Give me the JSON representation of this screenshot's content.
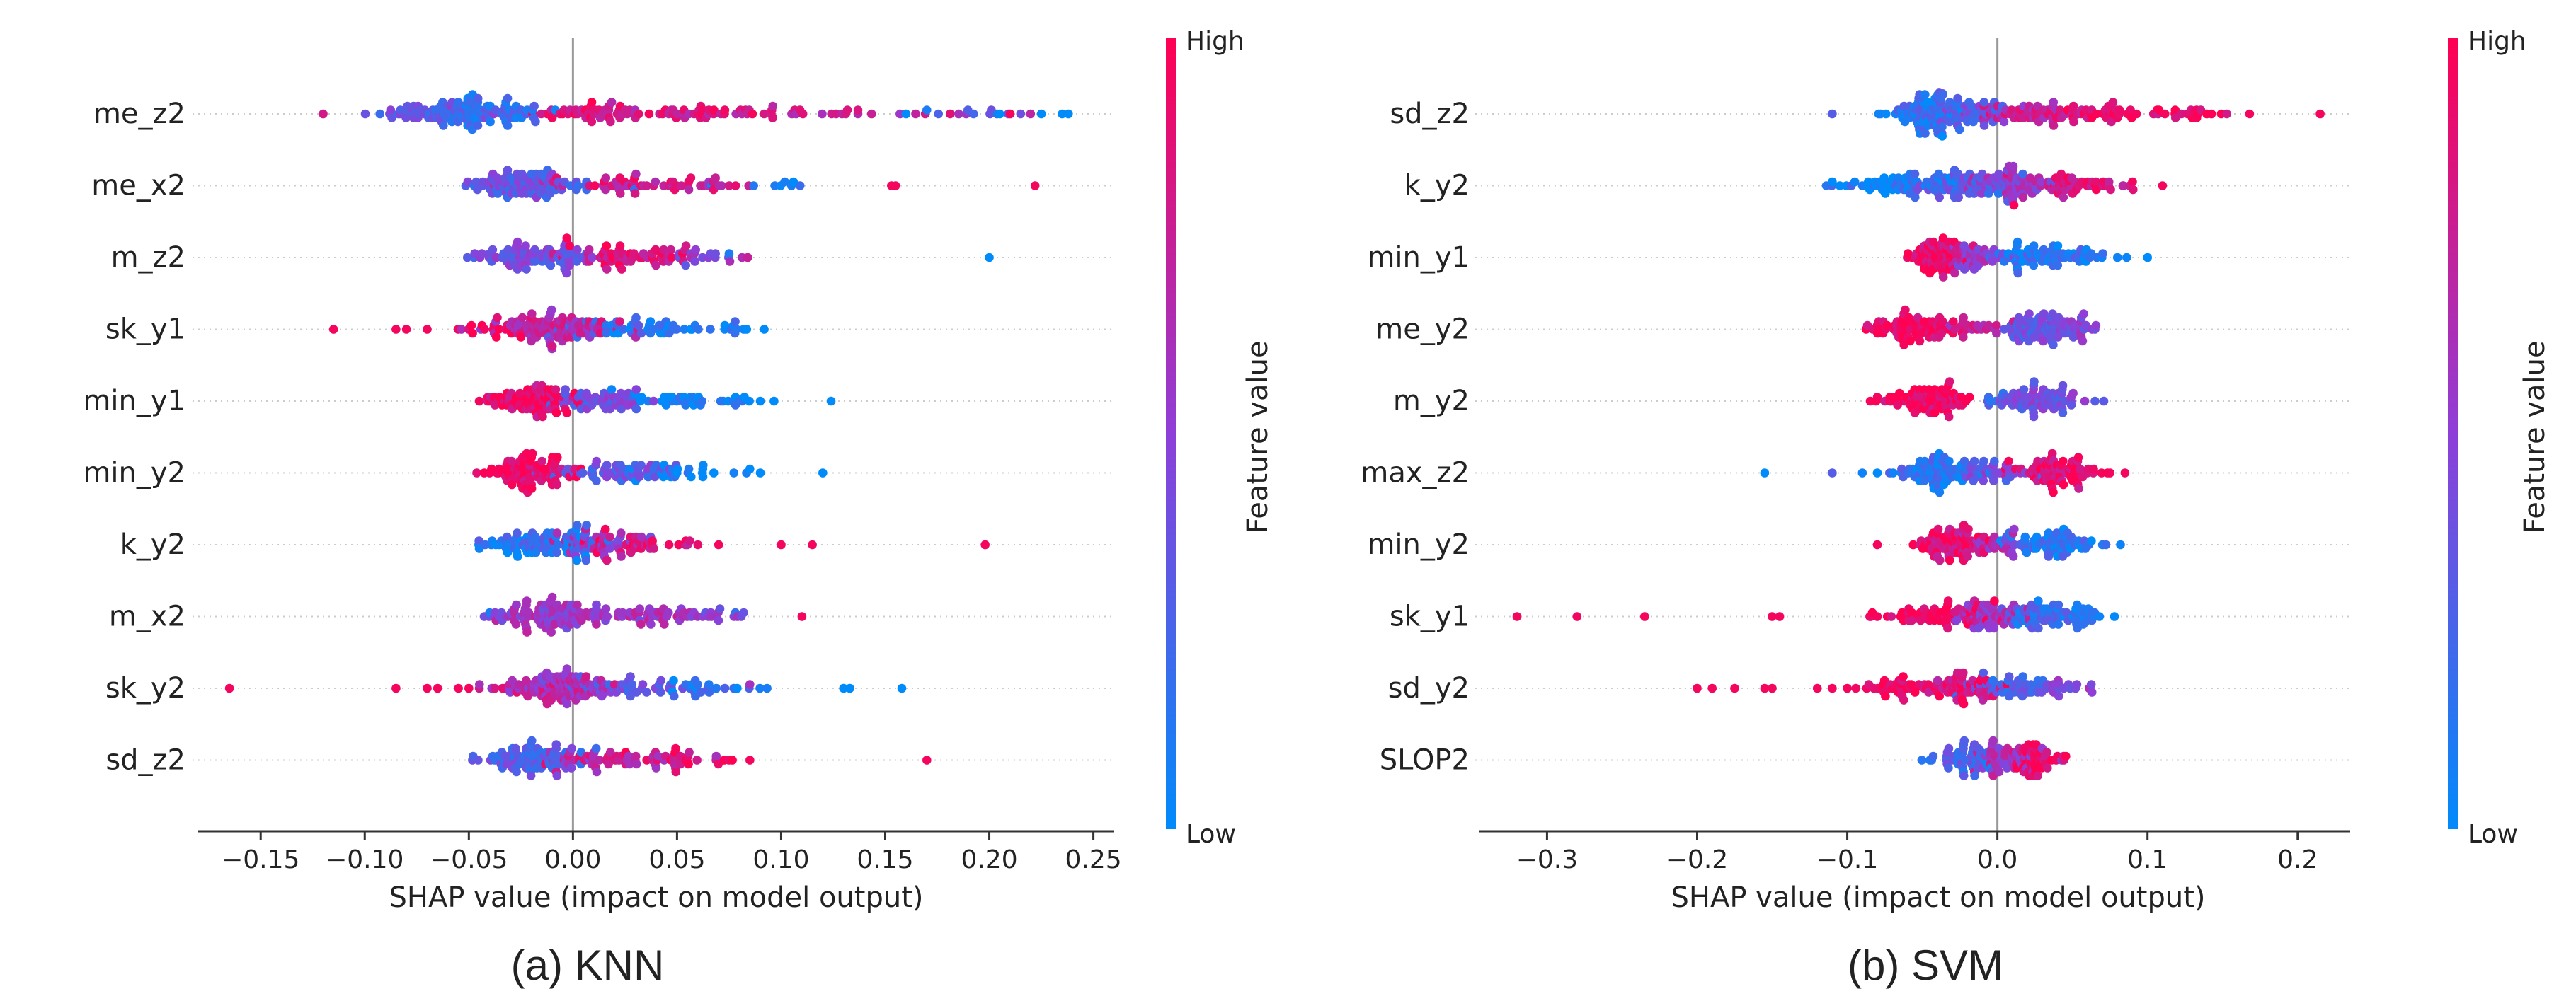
{
  "colors": {
    "low": "#008bfb",
    "mid": "#8e3fd8",
    "high": "#ff0052",
    "grid": "#cccccc",
    "zero_line": "#999999",
    "axis": "#333333"
  },
  "chart_data": [
    {
      "type": "scatter",
      "subtype": "shap-beeswarm",
      "caption": "(a) KNN",
      "xlabel": "SHAP value (impact on model output)",
      "xlim": [
        -0.18,
        0.26
      ],
      "xticks": [
        -0.15,
        -0.1,
        -0.05,
        0.0,
        0.05,
        0.1,
        0.15,
        0.2,
        0.25
      ],
      "xtick_labels": [
        "−0.15",
        "−0.10",
        "−0.05",
        "0.00",
        "0.05",
        "0.10",
        "0.15",
        "0.20",
        "0.25"
      ],
      "colorbar": {
        "label": "Feature value",
        "high": "High",
        "low": "Low"
      },
      "features": [
        {
          "name": "me_z2",
          "clusters": [
            [
              -0.045,
              0.018,
              95,
              0.2
            ],
            [
              -0.075,
              0.014,
              30,
              0.35
            ],
            [
              0.005,
              0.01,
              30,
              0.85
            ],
            [
              0.05,
              0.03,
              60,
              0.8
            ],
            [
              0.13,
              0.03,
              22,
              0.7
            ],
            [
              0.21,
              0.02,
              8,
              0.35
            ]
          ],
          "outliers": [
            [
              -0.12,
              0.8
            ],
            [
              0.235,
              0.0
            ],
            [
              0.238,
              0.0
            ],
            [
              0.225,
              0.0
            ],
            [
              0.205,
              0.0
            ],
            [
              0.21,
              0.95
            ],
            [
              0.17,
              0.1
            ],
            [
              0.16,
              0.0
            ]
          ]
        },
        {
          "name": "me_x2",
          "clusters": [
            [
              -0.02,
              0.013,
              95,
              0.35
            ],
            [
              0.03,
              0.02,
              45,
              0.8
            ],
            [
              0.07,
              0.01,
              12,
              0.75
            ],
            [
              0.1,
              0.01,
              8,
              0.05
            ]
          ],
          "outliers": [
            [
              0.155,
              0.95
            ],
            [
              0.153,
              0.95
            ],
            [
              0.222,
              0.95
            ]
          ]
        },
        {
          "name": "m_z2",
          "clusters": [
            [
              -0.02,
              0.015,
              85,
              0.4
            ],
            [
              0.025,
              0.018,
              60,
              0.85
            ],
            [
              0.06,
              0.01,
              18,
              0.5
            ]
          ],
          "outliers": [
            [
              0.2,
              0.0
            ],
            [
              0.075,
              0.1
            ]
          ]
        },
        {
          "name": "sk_y1",
          "clusters": [
            [
              -0.008,
              0.016,
              95,
              0.7
            ],
            [
              0.03,
              0.018,
              50,
              0.15
            ],
            [
              0.065,
              0.01,
              12,
              0.05
            ],
            [
              -0.04,
              0.012,
              18,
              0.9
            ]
          ],
          "outliers": [
            [
              -0.115,
              0.95
            ],
            [
              -0.085,
              0.95
            ],
            [
              -0.08,
              0.95
            ],
            [
              -0.07,
              0.95
            ],
            [
              0.082,
              0.05
            ]
          ]
        },
        {
          "name": "min_y1",
          "clusters": [
            [
              -0.02,
              0.01,
              85,
              0.9
            ],
            [
              0.015,
              0.015,
              50,
              0.4
            ],
            [
              0.05,
              0.015,
              28,
              0.05
            ],
            [
              0.08,
              0.01,
              10,
              0.0
            ]
          ],
          "outliers": [
            [
              -0.045,
              0.95
            ],
            [
              0.09,
              0.0
            ],
            [
              0.124,
              0.0
            ]
          ]
        },
        {
          "name": "min_y2",
          "clusters": [
            [
              -0.02,
              0.01,
              85,
              0.92
            ],
            [
              0.015,
              0.018,
              55,
              0.35
            ],
            [
              0.05,
              0.015,
              22,
              0.05
            ]
          ],
          "outliers": [
            [
              -0.04,
              0.95
            ],
            [
              0.085,
              0.0
            ],
            [
              0.09,
              0.0
            ],
            [
              0.12,
              0.0
            ]
          ]
        },
        {
          "name": "k_y2",
          "clusters": [
            [
              -0.015,
              0.015,
              85,
              0.15
            ],
            [
              0.01,
              0.012,
              30,
              0.55
            ],
            [
              0.03,
              0.015,
              40,
              0.85
            ]
          ],
          "outliers": [
            [
              -0.045,
              0.05
            ],
            [
              0.07,
              0.95
            ],
            [
              0.1,
              0.95
            ],
            [
              0.115,
              0.95
            ],
            [
              0.198,
              0.95
            ],
            [
              0.06,
              0.9
            ]
          ]
        },
        {
          "name": "m_x2",
          "clusters": [
            [
              -0.015,
              0.012,
              85,
              0.55
            ],
            [
              0.025,
              0.02,
              55,
              0.6
            ],
            [
              0.065,
              0.01,
              15,
              0.5
            ]
          ],
          "outliers": [
            [
              0.11,
              0.95
            ],
            [
              0.078,
              0.2
            ],
            [
              -0.04,
              0.1
            ]
          ]
        },
        {
          "name": "sk_y2",
          "clusters": [
            [
              -0.005,
              0.012,
              90,
              0.65
            ],
            [
              0.03,
              0.015,
              40,
              0.35
            ],
            [
              0.065,
              0.015,
              22,
              0.1
            ],
            [
              -0.03,
              0.012,
              15,
              0.75
            ]
          ],
          "outliers": [
            [
              -0.165,
              0.95
            ],
            [
              -0.085,
              0.95
            ],
            [
              -0.07,
              0.95
            ],
            [
              -0.065,
              0.95
            ],
            [
              -0.055,
              0.95
            ],
            [
              -0.05,
              0.95
            ],
            [
              0.085,
              0.6
            ],
            [
              0.13,
              0.0
            ],
            [
              0.133,
              0.0
            ],
            [
              0.158,
              0.0
            ]
          ]
        },
        {
          "name": "sd_z2",
          "clusters": [
            [
              -0.02,
              0.012,
              85,
              0.3
            ],
            [
              0.02,
              0.018,
              55,
              0.75
            ],
            [
              0.055,
              0.012,
              20,
              0.9
            ]
          ],
          "outliers": [
            [
              0.085,
              0.95
            ],
            [
              0.17,
              0.95
            ]
          ]
        }
      ]
    },
    {
      "type": "scatter",
      "subtype": "shap-beeswarm",
      "caption": "(b) SVM",
      "xlabel": "SHAP value (impact on model output)",
      "xlim": [
        -0.345,
        0.235
      ],
      "xticks": [
        -0.3,
        -0.2,
        -0.1,
        0.0,
        0.1,
        0.2
      ],
      "xtick_labels": [
        "−0.3",
        "−0.2",
        "−0.1",
        "0.0",
        "0.1",
        "0.2"
      ],
      "colorbar": {
        "label": "Feature value",
        "high": "High",
        "low": "Low"
      },
      "features": [
        {
          "name": "sd_z2",
          "clusters": [
            [
              -0.05,
              0.012,
              85,
              0.15
            ],
            [
              -0.02,
              0.015,
              50,
              0.35
            ],
            [
              0.02,
              0.02,
              55,
              0.75
            ],
            [
              0.07,
              0.025,
              40,
              0.9
            ],
            [
              0.13,
              0.015,
              18,
              0.95
            ]
          ],
          "outliers": [
            [
              -0.11,
              0.3
            ],
            [
              0.168,
              0.95
            ],
            [
              0.215,
              0.95
            ]
          ]
        },
        {
          "name": "k_y2",
          "clusters": [
            [
              -0.07,
              0.02,
              55,
              0.1
            ],
            [
              -0.025,
              0.015,
              60,
              0.3
            ],
            [
              0.01,
              0.015,
              55,
              0.55
            ],
            [
              0.05,
              0.018,
              50,
              0.85
            ]
          ],
          "outliers": [
            [
              -0.11,
              0.0
            ],
            [
              -0.105,
              0.0
            ],
            [
              -0.095,
              0.05
            ],
            [
              0.09,
              0.95
            ],
            [
              0.11,
              0.95
            ]
          ]
        },
        {
          "name": "min_y1",
          "clusters": [
            [
              -0.04,
              0.01,
              70,
              0.92
            ],
            [
              -0.01,
              0.012,
              40,
              0.55
            ],
            [
              0.03,
              0.015,
              55,
              0.15
            ],
            [
              0.06,
              0.01,
              12,
              0.05
            ]
          ],
          "outliers": [
            [
              0.1,
              0.0
            ],
            [
              0.08,
              0.05
            ],
            [
              -0.06,
              0.9
            ]
          ]
        },
        {
          "name": "me_y2",
          "clusters": [
            [
              -0.055,
              0.015,
              75,
              0.95
            ],
            [
              -0.015,
              0.01,
              20,
              0.7
            ],
            [
              0.025,
              0.012,
              65,
              0.35
            ],
            [
              0.05,
              0.01,
              25,
              0.45
            ]
          ],
          "outliers": [
            [
              -0.08,
              0.95
            ],
            [
              0.065,
              0.4
            ]
          ]
        },
        {
          "name": "m_y2",
          "clusters": [
            [
              -0.045,
              0.015,
              80,
              0.95
            ],
            [
              0.0,
              0.006,
              10,
              0.3
            ],
            [
              0.03,
              0.015,
              65,
              0.4
            ]
          ],
          "outliers": [
            [
              -0.08,
              0.95
            ],
            [
              0.065,
              0.3
            ]
          ]
        },
        {
          "name": "max_z2",
          "clusters": [
            [
              -0.04,
              0.012,
              80,
              0.15
            ],
            [
              -0.005,
              0.012,
              30,
              0.4
            ],
            [
              0.035,
              0.014,
              65,
              0.9
            ],
            [
              0.06,
              0.008,
              10,
              0.95
            ]
          ],
          "outliers": [
            [
              -0.155,
              0.0
            ],
            [
              -0.11,
              0.3
            ],
            [
              -0.09,
              0.05
            ],
            [
              -0.08,
              0.0
            ],
            [
              0.075,
              0.95
            ],
            [
              0.085,
              0.95
            ]
          ]
        },
        {
          "name": "min_y2",
          "clusters": [
            [
              -0.03,
              0.012,
              75,
              0.9
            ],
            [
              0.0,
              0.01,
              25,
              0.6
            ],
            [
              0.035,
              0.015,
              65,
              0.15
            ]
          ],
          "outliers": [
            [
              -0.08,
              0.95
            ],
            [
              0.082,
              0.05
            ],
            [
              0.07,
              0.1
            ]
          ]
        },
        {
          "name": "sk_y1",
          "clusters": [
            [
              -0.04,
              0.018,
              60,
              0.95
            ],
            [
              -0.005,
              0.012,
              50,
              0.6
            ],
            [
              0.03,
              0.015,
              60,
              0.2
            ],
            [
              0.06,
              0.008,
              15,
              0.1
            ]
          ],
          "outliers": [
            [
              -0.32,
              0.95
            ],
            [
              -0.28,
              0.95
            ],
            [
              -0.235,
              0.95
            ],
            [
              -0.15,
              0.95
            ],
            [
              -0.145,
              0.95
            ],
            [
              -0.085,
              0.95
            ],
            [
              -0.08,
              0.95
            ],
            [
              0.068,
              0.05
            ]
          ]
        },
        {
          "name": "sd_y2",
          "clusters": [
            [
              -0.065,
              0.015,
              40,
              0.95
            ],
            [
              -0.02,
              0.015,
              50,
              0.85
            ],
            [
              0.01,
              0.012,
              45,
              0.3
            ],
            [
              0.04,
              0.01,
              20,
              0.5
            ]
          ],
          "outliers": [
            [
              -0.2,
              0.95
            ],
            [
              -0.19,
              0.95
            ],
            [
              -0.175,
              0.95
            ],
            [
              -0.155,
              0.95
            ],
            [
              -0.15,
              0.95
            ],
            [
              -0.12,
              0.95
            ],
            [
              -0.11,
              0.95
            ],
            [
              -0.1,
              0.95
            ],
            [
              0.063,
              0.5
            ]
          ]
        },
        {
          "name": "SLOP2",
          "clusters": [
            [
              -0.02,
              0.01,
              50,
              0.25
            ],
            [
              0.005,
              0.01,
              45,
              0.6
            ],
            [
              0.025,
              0.008,
              45,
              0.9
            ]
          ],
          "outliers": [
            [
              -0.045,
              0.1
            ],
            [
              0.04,
              0.95
            ]
          ]
        }
      ]
    }
  ]
}
